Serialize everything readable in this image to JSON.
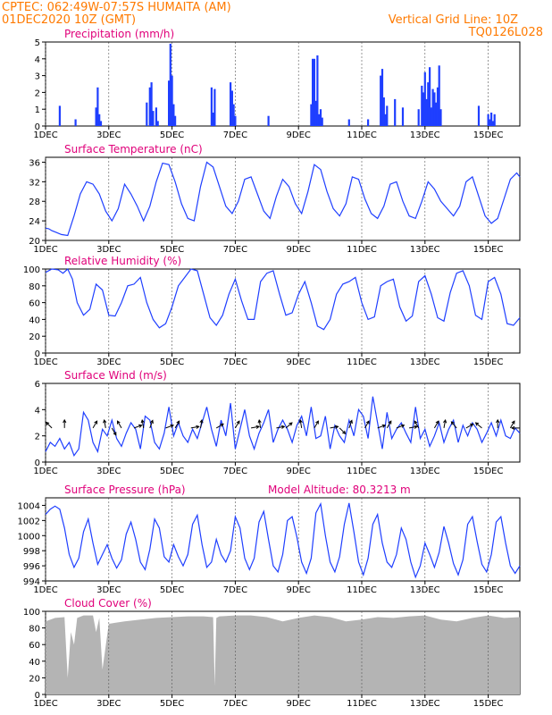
{
  "header": {
    "line1_left": "CPTEC:   062:49W-07:57S   HUMAITA (AM)",
    "line2_left": "01DEC2020 10Z (GMT)",
    "line1_right": "Vertical Grid Line: 10Z",
    "line2_right": "TQ0126L028"
  },
  "colors": {
    "header": "#ff7a00",
    "title": "#e0007a",
    "series": "#1f3fff",
    "cloud": "#b4b4b4",
    "grid": "#555555"
  },
  "x_ticks": [
    {
      "pos": 0,
      "label": "1DEC"
    },
    {
      "pos": 2,
      "label": "3DEC"
    },
    {
      "pos": 4,
      "label": "5DEC"
    },
    {
      "pos": 6,
      "label": "7DEC"
    },
    {
      "pos": 8,
      "label": "9DEC"
    },
    {
      "pos": 10,
      "label": "11DEC"
    },
    {
      "pos": 12,
      "label": "13DEC"
    },
    {
      "pos": 14,
      "label": "15DEC"
    }
  ],
  "chart_data": [
    {
      "id": "precip",
      "type": "bar",
      "title": "Precipitation (mm/h)",
      "xlim": [
        0,
        15
      ],
      "ylim": [
        0,
        5
      ],
      "yticks": [
        0,
        1,
        2,
        3,
        4,
        5
      ],
      "x": [
        0.45,
        0.95,
        1.6,
        1.65,
        1.7,
        1.75,
        3.2,
        3.3,
        3.35,
        3.4,
        3.5,
        3.55,
        3.9,
        3.95,
        4.0,
        4.05,
        4.1,
        5.25,
        5.3,
        5.35,
        5.85,
        5.9,
        5.95,
        6.0,
        7.05,
        8.4,
        8.45,
        8.5,
        8.55,
        8.6,
        8.65,
        8.7,
        8.75,
        9.6,
        10.2,
        10.6,
        10.65,
        10.7,
        10.75,
        10.8,
        11.05,
        11.3,
        11.8,
        11.9,
        11.95,
        12.0,
        12.05,
        12.1,
        12.15,
        12.2,
        12.25,
        12.3,
        12.35,
        12.4,
        12.45,
        12.5,
        13.7,
        14.0,
        14.05,
        14.1,
        14.15,
        14.2
      ],
      "values": [
        1.2,
        0.4,
        1.1,
        2.3,
        0.7,
        0.3,
        1.4,
        2.3,
        2.6,
        0.9,
        1.1,
        0.3,
        2.7,
        4.9,
        3.0,
        1.3,
        0.6,
        2.3,
        0.8,
        2.2,
        2.6,
        2.1,
        1.3,
        0.6,
        0.6,
        1.3,
        4.0,
        4.0,
        1.5,
        4.2,
        0.7,
        1.0,
        0.5,
        0.4,
        0.4,
        3.0,
        3.4,
        1.7,
        0.7,
        1.2,
        1.6,
        1.1,
        1.0,
        2.4,
        2.0,
        3.2,
        1.6,
        2.6,
        3.5,
        1.1,
        2.2,
        2.0,
        1.4,
        2.3,
        3.6,
        1.0,
        1.2,
        0.7,
        0.4,
        0.8,
        0.3,
        0.7
      ]
    },
    {
      "id": "temp",
      "type": "line",
      "title": "Surface Temperature (nC)",
      "xlim": [
        0,
        15
      ],
      "ylim": [
        20,
        37
      ],
      "yticks": [
        20,
        24,
        28,
        32,
        36
      ],
      "x": [
        0,
        0.1,
        0.2,
        0.35,
        0.5,
        0.7,
        0.9,
        1.1,
        1.3,
        1.5,
        1.7,
        1.9,
        2.1,
        2.3,
        2.5,
        2.7,
        2.9,
        3.1,
        3.3,
        3.5,
        3.7,
        3.9,
        4.1,
        4.3,
        4.5,
        4.7,
        4.9,
        5.1,
        5.3,
        5.5,
        5.7,
        5.9,
        6.1,
        6.3,
        6.5,
        6.7,
        6.9,
        7.1,
        7.3,
        7.5,
        7.7,
        7.9,
        8.1,
        8.3,
        8.5,
        8.7,
        8.9,
        9.1,
        9.3,
        9.5,
        9.7,
        9.9,
        10.1,
        10.3,
        10.5,
        10.7,
        10.9,
        11.1,
        11.3,
        11.5,
        11.7,
        11.9,
        12.1,
        12.3,
        12.5,
        12.7,
        12.9,
        13.1,
        13.3,
        13.5,
        13.7,
        13.9,
        14.1,
        14.3,
        14.5,
        14.7,
        14.9,
        15.0
      ],
      "values": [
        22.5,
        22.4,
        22.0,
        21.6,
        21.2,
        21.0,
        25.0,
        29.5,
        32.0,
        31.5,
        29.5,
        26.0,
        24.0,
        26.5,
        31.5,
        29.5,
        27.0,
        24.0,
        27.0,
        32.0,
        35.8,
        35.5,
        32.0,
        27.5,
        24.5,
        24.0,
        31.0,
        36.0,
        35.0,
        31.0,
        27.0,
        25.5,
        28.0,
        32.5,
        33.0,
        29.5,
        26.0,
        24.5,
        29.0,
        32.5,
        31.0,
        27.5,
        25.5,
        30.0,
        35.5,
        34.5,
        30.0,
        26.5,
        25.0,
        27.5,
        33.0,
        32.5,
        28.5,
        25.5,
        24.5,
        27.0,
        31.5,
        32.0,
        28.0,
        25.0,
        24.5,
        28.0,
        32.0,
        30.5,
        28.0,
        26.5,
        25.0,
        27.0,
        32.0,
        33.0,
        29.0,
        25.0,
        23.5,
        24.5,
        28.5,
        32.5,
        33.8,
        33.0
      ]
    },
    {
      "id": "rh",
      "type": "line",
      "title": "Relative Humidity (%)",
      "xlim": [
        0,
        15
      ],
      "ylim": [
        0,
        100
      ],
      "yticks": [
        0,
        20,
        40,
        60,
        80,
        100
      ],
      "x": [
        0,
        0.2,
        0.4,
        0.55,
        0.7,
        0.85,
        1.0,
        1.2,
        1.4,
        1.6,
        1.8,
        2.0,
        2.2,
        2.4,
        2.6,
        2.8,
        3.0,
        3.2,
        3.4,
        3.6,
        3.8,
        4.0,
        4.2,
        4.4,
        4.6,
        4.8,
        5.0,
        5.2,
        5.4,
        5.6,
        5.8,
        6.0,
        6.2,
        6.4,
        6.6,
        6.8,
        7.0,
        7.2,
        7.4,
        7.6,
        7.8,
        8.0,
        8.2,
        8.4,
        8.6,
        8.8,
        9.0,
        9.2,
        9.4,
        9.6,
        9.8,
        10.0,
        10.2,
        10.4,
        10.6,
        10.8,
        11.0,
        11.2,
        11.4,
        11.6,
        11.8,
        12.0,
        12.2,
        12.4,
        12.6,
        12.8,
        13.0,
        13.2,
        13.4,
        13.6,
        13.8,
        14.0,
        14.2,
        14.4,
        14.6,
        14.8,
        15.0
      ],
      "values": [
        96,
        100,
        99,
        95,
        100,
        88,
        60,
        45,
        52,
        82,
        75,
        45,
        44,
        60,
        80,
        82,
        90,
        60,
        40,
        30,
        35,
        55,
        80,
        90,
        100,
        98,
        70,
        42,
        33,
        45,
        70,
        88,
        62,
        40,
        40,
        85,
        95,
        98,
        70,
        45,
        48,
        70,
        85,
        60,
        32,
        28,
        40,
        70,
        82,
        85,
        90,
        60,
        40,
        43,
        80,
        85,
        88,
        55,
        38,
        44,
        85,
        92,
        70,
        42,
        38,
        72,
        95,
        98,
        80,
        45,
        40,
        85,
        90,
        70,
        35,
        33,
        42
      ]
    },
    {
      "id": "wind",
      "type": "line",
      "title": "Surface Wind (m/s)",
      "xlim": [
        0,
        15
      ],
      "ylim": [
        0,
        6
      ],
      "yticks": [
        0,
        2,
        4,
        6
      ],
      "x": [
        0,
        0.15,
        0.3,
        0.45,
        0.6,
        0.75,
        0.9,
        1.05,
        1.2,
        1.35,
        1.5,
        1.65,
        1.8,
        1.95,
        2.1,
        2.25,
        2.4,
        2.55,
        2.7,
        2.85,
        3.0,
        3.15,
        3.3,
        3.45,
        3.6,
        3.75,
        3.9,
        4.05,
        4.2,
        4.35,
        4.5,
        4.65,
        4.8,
        4.95,
        5.1,
        5.25,
        5.4,
        5.55,
        5.7,
        5.85,
        6.0,
        6.15,
        6.3,
        6.45,
        6.6,
        6.75,
        6.9,
        7.05,
        7.2,
        7.35,
        7.5,
        7.65,
        7.8,
        7.95,
        8.1,
        8.25,
        8.4,
        8.55,
        8.7,
        8.85,
        9.0,
        9.15,
        9.3,
        9.45,
        9.6,
        9.75,
        9.9,
        10.05,
        10.2,
        10.35,
        10.5,
        10.65,
        10.8,
        10.95,
        11.1,
        11.25,
        11.4,
        11.55,
        11.7,
        11.85,
        12.0,
        12.15,
        12.3,
        12.45,
        12.6,
        12.75,
        12.9,
        13.05,
        13.2,
        13.35,
        13.5,
        13.65,
        13.8,
        13.95,
        14.1,
        14.25,
        14.4,
        14.55,
        14.7,
        14.85,
        15.0
      ],
      "values": [
        0.8,
        1.5,
        1.2,
        1.8,
        1.0,
        1.5,
        0.5,
        1.0,
        3.8,
        3.2,
        1.5,
        0.8,
        2.5,
        2.0,
        3.2,
        1.8,
        1.2,
        2.2,
        3.0,
        2.5,
        1.0,
        3.5,
        3.2,
        1.5,
        1.0,
        2.2,
        4.2,
        2.0,
        3.0,
        2.0,
        1.5,
        2.5,
        1.8,
        3.0,
        4.2,
        2.5,
        1.2,
        3.2,
        2.0,
        4.5,
        1.0,
        2.5,
        4.0,
        2.0,
        1.0,
        2.2,
        3.0,
        4.0,
        1.5,
        2.5,
        3.2,
        2.5,
        1.5,
        2.8,
        3.5,
        2.0,
        4.2,
        1.8,
        2.0,
        3.5,
        1.0,
        2.8,
        2.0,
        1.5,
        3.2,
        2.0,
        4.0,
        3.5,
        1.8,
        5.0,
        3.0,
        1.0,
        3.8,
        1.8,
        2.5,
        3.0,
        2.2,
        1.5,
        4.2,
        1.8,
        2.5,
        1.2,
        2.0,
        3.0,
        1.5,
        2.5,
        3.2,
        1.5,
        2.8,
        2.0,
        3.0,
        2.5,
        1.5,
        2.2,
        3.0,
        2.0,
        3.2,
        2.0,
        1.8,
        2.6,
        2.2
      ],
      "arrows": [
        [
          0.2,
          -135
        ],
        [
          0.6,
          -90
        ],
        [
          1.5,
          -60
        ],
        [
          1.9,
          -100
        ],
        [
          2.1,
          60
        ],
        [
          2.4,
          -120
        ],
        [
          2.8,
          -20
        ],
        [
          3.1,
          -100
        ],
        [
          3.3,
          -70
        ],
        [
          3.8,
          -20
        ],
        [
          4.1,
          -60
        ],
        [
          4.6,
          -10
        ],
        [
          4.9,
          -80
        ],
        [
          5.4,
          -30
        ],
        [
          6.0,
          -60
        ],
        [
          6.5,
          -10
        ],
        [
          6.8,
          -100
        ],
        [
          7.3,
          -10
        ],
        [
          7.6,
          -40
        ],
        [
          8.1,
          -100
        ],
        [
          8.5,
          -60
        ],
        [
          9.0,
          -10
        ],
        [
          9.3,
          45
        ],
        [
          9.6,
          -70
        ],
        [
          10.1,
          -60
        ],
        [
          10.5,
          -20
        ],
        [
          10.8,
          -60
        ],
        [
          11.1,
          -20
        ],
        [
          11.5,
          -10
        ],
        [
          11.8,
          -120
        ],
        [
          12.3,
          -60
        ],
        [
          12.6,
          -80
        ],
        [
          13.0,
          -130
        ],
        [
          13.3,
          -30
        ],
        [
          13.8,
          -140
        ],
        [
          14.3,
          -90
        ],
        [
          14.7,
          -60
        ],
        [
          15.0,
          -180
        ]
      ]
    },
    {
      "id": "pressure",
      "type": "line",
      "title": "Surface Pressure (hPa)",
      "annotation": "Model Altitude: 80.3213 m",
      "xlim": [
        0,
        15
      ],
      "ylim": [
        994,
        1005
      ],
      "yticks": [
        994,
        996,
        998,
        1000,
        1002,
        1004
      ],
      "x": [
        0,
        0.15,
        0.3,
        0.45,
        0.6,
        0.75,
        0.9,
        1.05,
        1.2,
        1.35,
        1.5,
        1.65,
        1.8,
        1.95,
        2.1,
        2.25,
        2.4,
        2.55,
        2.7,
        2.85,
        3.0,
        3.15,
        3.3,
        3.45,
        3.6,
        3.75,
        3.9,
        4.05,
        4.2,
        4.35,
        4.5,
        4.65,
        4.8,
        4.95,
        5.1,
        5.25,
        5.4,
        5.55,
        5.7,
        5.85,
        6.0,
        6.15,
        6.3,
        6.45,
        6.6,
        6.75,
        6.9,
        7.05,
        7.2,
        7.35,
        7.5,
        7.65,
        7.8,
        7.95,
        8.1,
        8.25,
        8.4,
        8.55,
        8.7,
        8.85,
        9.0,
        9.15,
        9.3,
        9.45,
        9.6,
        9.75,
        9.9,
        10.05,
        10.2,
        10.35,
        10.5,
        10.65,
        10.8,
        10.95,
        11.1,
        11.25,
        11.4,
        11.55,
        11.7,
        11.85,
        12.0,
        12.15,
        12.3,
        12.45,
        12.6,
        12.75,
        12.9,
        13.05,
        13.2,
        13.35,
        13.5,
        13.65,
        13.8,
        13.95,
        14.1,
        14.25,
        14.4,
        14.55,
        14.7,
        14.85,
        15.0
      ],
      "values": [
        1002.8,
        1003.5,
        1003.9,
        1003.5,
        1001,
        997.5,
        995.8,
        997,
        1000.5,
        1002.2,
        999,
        996.2,
        997.5,
        998.8,
        997,
        995.7,
        996.8,
        1000.2,
        1001.8,
        999.5,
        996.5,
        995.5,
        998.2,
        1002.2,
        1001,
        997.2,
        996.5,
        998.8,
        997.2,
        996,
        997.5,
        1001.5,
        1002.7,
        998.8,
        995.8,
        996.5,
        999.5,
        997.5,
        996.5,
        998,
        1002.5,
        1001,
        997,
        995.5,
        997,
        1001.8,
        1003.2,
        999.5,
        996,
        995.2,
        997.5,
        1002,
        1002.5,
        999.8,
        996.5,
        995,
        997,
        1003,
        1004.2,
        1000,
        996.5,
        995.2,
        997.2,
        1001.5,
        1004.3,
        1000.5,
        996.5,
        994.8,
        997,
        1001.5,
        1002.8,
        999,
        996.5,
        995.8,
        997.5,
        1001,
        999.5,
        996.5,
        994.5,
        996,
        999,
        997.5,
        995.8,
        997.8,
        1001.2,
        999,
        996.3,
        994.8,
        996.8,
        1001.5,
        1002.5,
        999.2,
        996.2,
        995.2,
        997.5,
        1001.8,
        1002.5,
        999,
        996,
        995,
        996
      ]
    },
    {
      "id": "cloud",
      "type": "area",
      "title": "Cloud Cover (%)",
      "xlim": [
        0,
        15
      ],
      "ylim": [
        0,
        100
      ],
      "yticks": [
        0,
        20,
        40,
        60,
        80,
        100
      ],
      "x": [
        0,
        0.3,
        0.6,
        0.7,
        0.8,
        0.9,
        1.0,
        1.2,
        1.5,
        1.6,
        1.7,
        1.8,
        2.0,
        2.5,
        3.0,
        3.5,
        4.0,
        4.5,
        5.0,
        5.3,
        5.35,
        5.4,
        5.5,
        6.0,
        6.5,
        7.0,
        7.5,
        8.0,
        8.5,
        9.0,
        9.5,
        10.0,
        10.5,
        11.0,
        11.5,
        12.0,
        12.5,
        13.0,
        13.5,
        14.0,
        14.5,
        15.0
      ],
      "values": [
        88,
        92,
        93,
        20,
        75,
        60,
        92,
        95,
        95,
        75,
        92,
        30,
        85,
        88,
        90,
        92,
        93,
        94,
        94,
        93,
        10,
        92,
        94,
        95,
        95,
        93,
        88,
        92,
        95,
        93,
        88,
        90,
        93,
        92,
        94,
        95,
        90,
        88,
        92,
        95,
        92,
        93
      ]
    }
  ]
}
